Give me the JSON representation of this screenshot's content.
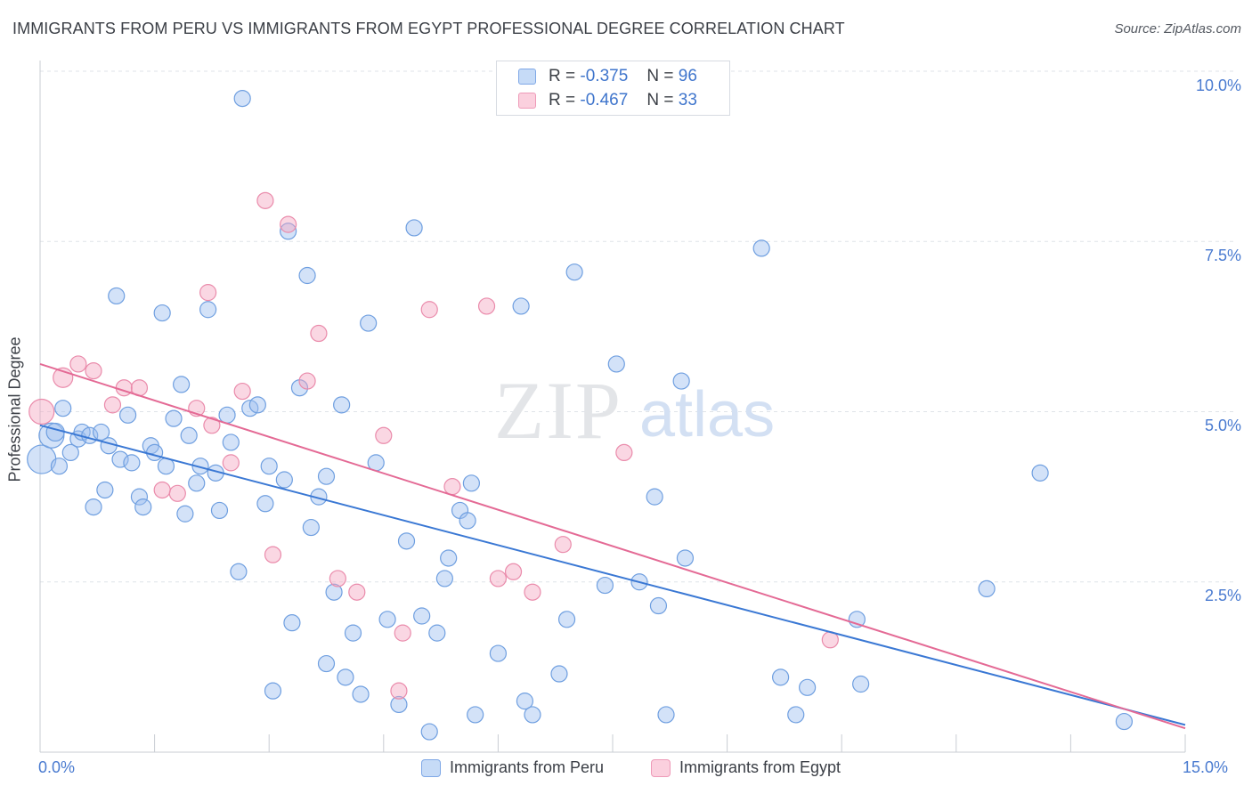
{
  "title": "IMMIGRANTS FROM PERU VS IMMIGRANTS FROM EGYPT PROFESSIONAL DEGREE CORRELATION CHART",
  "source": "Source: ZipAtlas.com",
  "watermark": {
    "zip": "ZIP",
    "atlas": "atlas"
  },
  "stats": [
    {
      "r_label": "R =",
      "r_value": "-0.375",
      "n_label": "N =",
      "n_value": "96",
      "color": "#9dbff0"
    },
    {
      "r_label": "R =",
      "r_value": "-0.467",
      "n_label": "N =",
      "n_value": "33",
      "color": "#f3a7c0"
    }
  ],
  "legend": [
    {
      "label": "Immigrants from Peru",
      "color": "#9dbff0"
    },
    {
      "label": "Immigrants from Egypt",
      "color": "#f3a7c0"
    }
  ],
  "chart_data": {
    "type": "scatter",
    "ylabel": "Professional Degree",
    "xlim": [
      0,
      15
    ],
    "ylim": [
      0,
      10.5
    ],
    "x_tick_labels": {
      "left": "0.0%",
      "right": "15.0%"
    },
    "y_ticks": [
      {
        "value": 10,
        "label": "10.0%"
      },
      {
        "value": 7.5,
        "label": "7.5%"
      },
      {
        "value": 5,
        "label": "5.0%"
      },
      {
        "value": 2.5,
        "label": "2.5%"
      }
    ],
    "grid": true,
    "series": [
      {
        "name": "Immigrants from Peru",
        "color": "#9dbff0",
        "stroke": "#6f9fe0",
        "trend_color": "#3a78d4",
        "trend": [
          [
            0,
            4.8
          ],
          [
            15,
            0.4
          ]
        ],
        "points": [
          [
            0.02,
            4.3,
            16
          ],
          [
            0.15,
            4.65,
            14
          ],
          [
            0.2,
            4.7,
            10
          ],
          [
            0.25,
            4.2,
            9
          ],
          [
            0.3,
            5.05,
            9
          ],
          [
            0.4,
            4.4,
            9
          ],
          [
            0.5,
            4.6,
            9
          ],
          [
            0.55,
            4.7,
            9
          ],
          [
            0.65,
            4.65,
            9
          ],
          [
            0.7,
            3.6,
            9
          ],
          [
            0.8,
            4.7,
            9
          ],
          [
            0.85,
            3.85,
            9
          ],
          [
            0.9,
            4.5,
            9
          ],
          [
            1.0,
            6.7,
            9
          ],
          [
            1.05,
            4.3,
            9
          ],
          [
            1.15,
            4.95,
            9
          ],
          [
            1.2,
            4.25,
            9
          ],
          [
            1.3,
            3.75,
            9
          ],
          [
            1.35,
            3.6,
            9
          ],
          [
            1.45,
            4.5,
            9
          ],
          [
            1.5,
            4.4,
            9
          ],
          [
            1.6,
            6.45,
            9
          ],
          [
            1.65,
            4.2,
            9
          ],
          [
            1.75,
            4.9,
            9
          ],
          [
            1.85,
            5.4,
            9
          ],
          [
            1.9,
            3.5,
            9
          ],
          [
            1.95,
            4.65,
            9
          ],
          [
            2.05,
            3.95,
            9
          ],
          [
            2.1,
            4.2,
            9
          ],
          [
            2.2,
            6.5,
            9
          ],
          [
            2.3,
            4.1,
            9
          ],
          [
            2.35,
            3.55,
            9
          ],
          [
            2.45,
            4.95,
            9
          ],
          [
            2.5,
            4.55,
            9
          ],
          [
            2.6,
            2.65,
            9
          ],
          [
            2.65,
            9.6,
            9
          ],
          [
            2.75,
            5.05,
            9
          ],
          [
            2.85,
            5.1,
            9
          ],
          [
            2.95,
            3.65,
            9
          ],
          [
            3.0,
            4.2,
            9
          ],
          [
            3.05,
            0.9,
            9
          ],
          [
            3.2,
            4.0,
            9
          ],
          [
            3.25,
            7.65,
            9
          ],
          [
            3.3,
            1.9,
            9
          ],
          [
            3.4,
            5.35,
            9
          ],
          [
            3.5,
            7.0,
            9
          ],
          [
            3.55,
            3.3,
            9
          ],
          [
            3.65,
            3.75,
            9
          ],
          [
            3.75,
            1.3,
            9
          ],
          [
            3.75,
            4.05,
            9
          ],
          [
            3.85,
            2.35,
            9
          ],
          [
            3.95,
            5.1,
            9
          ],
          [
            4.0,
            1.1,
            9
          ],
          [
            4.1,
            1.75,
            9
          ],
          [
            4.2,
            0.85,
            9
          ],
          [
            4.3,
            6.3,
            9
          ],
          [
            4.4,
            4.25,
            9
          ],
          [
            4.55,
            1.95,
            9
          ],
          [
            4.7,
            0.7,
            9
          ],
          [
            4.8,
            3.1,
            9
          ],
          [
            4.9,
            7.7,
            9
          ],
          [
            5.0,
            2.0,
            9
          ],
          [
            5.1,
            0.3,
            9
          ],
          [
            5.2,
            1.75,
            9
          ],
          [
            5.3,
            2.55,
            9
          ],
          [
            5.35,
            2.85,
            9
          ],
          [
            5.5,
            3.55,
            9
          ],
          [
            5.6,
            3.4,
            9
          ],
          [
            5.65,
            3.95,
            9
          ],
          [
            5.7,
            0.55,
            9
          ],
          [
            6.0,
            1.45,
            9
          ],
          [
            6.1,
            9.95,
            9
          ],
          [
            6.3,
            6.55,
            9
          ],
          [
            6.35,
            0.75,
            9
          ],
          [
            6.45,
            0.55,
            9
          ],
          [
            6.8,
            1.15,
            9
          ],
          [
            6.9,
            1.95,
            9
          ],
          [
            7.0,
            7.05,
            9
          ],
          [
            7.4,
            2.45,
            9
          ],
          [
            7.55,
            5.7,
            9
          ],
          [
            7.85,
            2.5,
            9
          ],
          [
            8.05,
            3.75,
            9
          ],
          [
            8.1,
            2.15,
            9
          ],
          [
            8.2,
            0.55,
            9
          ],
          [
            8.4,
            5.45,
            9
          ],
          [
            8.45,
            2.85,
            9
          ],
          [
            9.45,
            7.4,
            9
          ],
          [
            9.7,
            1.1,
            9
          ],
          [
            9.9,
            0.55,
            9
          ],
          [
            10.05,
            0.95,
            9
          ],
          [
            10.7,
            1.95,
            9
          ],
          [
            10.75,
            1.0,
            9
          ],
          [
            12.4,
            2.4,
            9
          ],
          [
            13.1,
            4.1,
            9
          ],
          [
            14.2,
            0.45,
            9
          ]
        ]
      },
      {
        "name": "Immigrants from Egypt",
        "color": "#f3a7c0",
        "stroke": "#ea8bab",
        "trend_color": "#e46a95",
        "trend": [
          [
            0,
            5.7
          ],
          [
            15,
            0.35
          ]
        ],
        "points": [
          [
            0.02,
            5.0,
            14
          ],
          [
            0.3,
            5.5,
            11
          ],
          [
            0.5,
            5.7,
            9
          ],
          [
            0.7,
            5.6,
            9
          ],
          [
            0.95,
            5.1,
            9
          ],
          [
            1.1,
            5.35,
            9
          ],
          [
            1.3,
            5.35,
            9
          ],
          [
            1.6,
            3.85,
            9
          ],
          [
            1.8,
            3.8,
            9
          ],
          [
            2.05,
            5.05,
            9
          ],
          [
            2.2,
            6.75,
            9
          ],
          [
            2.25,
            4.8,
            9
          ],
          [
            2.5,
            4.25,
            9
          ],
          [
            2.65,
            5.3,
            9
          ],
          [
            2.95,
            8.1,
            9
          ],
          [
            3.05,
            2.9,
            9
          ],
          [
            3.25,
            7.75,
            9
          ],
          [
            3.5,
            5.45,
            9
          ],
          [
            3.65,
            6.15,
            9
          ],
          [
            3.9,
            2.55,
            9
          ],
          [
            4.15,
            2.35,
            9
          ],
          [
            4.5,
            4.65,
            9
          ],
          [
            4.7,
            0.9,
            9
          ],
          [
            4.75,
            1.75,
            9
          ],
          [
            5.1,
            6.5,
            9
          ],
          [
            5.4,
            3.9,
            9
          ],
          [
            5.85,
            6.55,
            9
          ],
          [
            6.0,
            2.55,
            9
          ],
          [
            6.2,
            2.65,
            9
          ],
          [
            6.45,
            2.35,
            9
          ],
          [
            6.85,
            3.05,
            9
          ],
          [
            7.65,
            4.4,
            9
          ],
          [
            10.35,
            1.65,
            9
          ]
        ]
      }
    ]
  }
}
